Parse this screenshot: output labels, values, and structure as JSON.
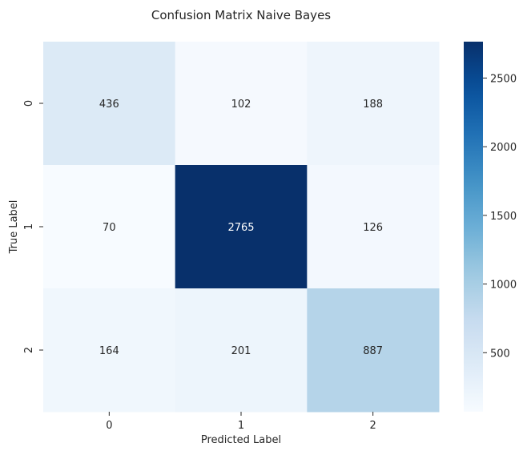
{
  "chart_data": {
    "type": "heatmap",
    "title": "Confusion Matrix Naive Bayes",
    "xlabel": "Predicted Label",
    "ylabel": "True Label",
    "x_categories": [
      "0",
      "1",
      "2"
    ],
    "y_categories": [
      "0",
      "1",
      "2"
    ],
    "values": [
      [
        436,
        102,
        188
      ],
      [
        70,
        2765,
        126
      ],
      [
        164,
        201,
        887
      ]
    ],
    "colormap": "Blues",
    "colorbar": {
      "vmin": 70,
      "vmax": 2765,
      "ticks": [
        500,
        1000,
        1500,
        2000,
        2500
      ]
    },
    "grid": false
  }
}
